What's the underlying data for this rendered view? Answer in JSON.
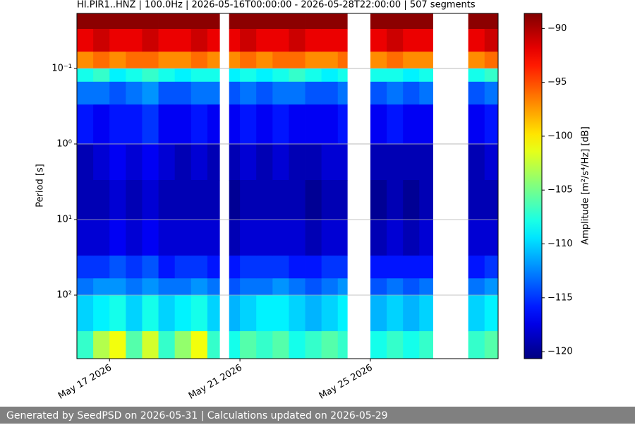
{
  "chart_data": {
    "type": "spectrogram",
    "title": "HI.PIR1..HNZ | 100.0Hz | 2026-05-16T00:00:00 - 2026-05-28T22:00:00 | 507 segments",
    "y_label": "Period [s]",
    "colorbar_label": "Amplitude [m²/s⁴/Hz] [dB]",
    "colormap": "jet",
    "y_log": true,
    "y_inverted": true,
    "grid": true,
    "x": [
      "2026-05-16 00:00",
      "2026-05-16 12:00",
      "2026-05-17 00:00",
      "2026-05-17 12:00",
      "2026-05-18 00:00",
      "2026-05-18 12:00",
      "2026-05-19 00:00",
      "2026-05-19 12:00",
      "2026-05-20 00:00",
      "2026-05-20 09:00",
      "2026-05-20 16:00",
      "2026-05-21 00:00",
      "2026-05-21 12:00",
      "2026-05-22 00:00",
      "2026-05-22 12:00",
      "2026-05-23 00:00",
      "2026-05-23 12:00",
      "2026-05-24 00:00",
      "2026-05-24 07:00",
      "2026-05-25 00:00",
      "2026-05-25 12:00",
      "2026-05-26 00:00",
      "2026-05-26 12:00",
      "2026-05-26 22:00",
      "2026-05-28 00:00",
      "2026-05-28 12:00",
      "2026-05-28 22:00"
    ],
    "periods": [
      0.0187,
      0.03,
      0.06,
      0.1,
      0.15,
      0.3,
      1,
      3,
      10,
      30,
      60,
      100,
      300,
      693
    ],
    "values": [
      [
        -89,
        -92,
        -97,
        -108,
        -113,
        -116,
        -119,
        -119,
        -118,
        -115,
        -113,
        -110,
        -107
      ],
      [
        -89,
        -91,
        -96,
        -107,
        -113,
        -117,
        -118,
        -119,
        -118,
        -115,
        -112,
        -109,
        -103
      ],
      [
        -89,
        -92,
        -97,
        -109,
        -114,
        -116,
        -117,
        -118,
        -117,
        -114,
        -112,
        -108,
        -101
      ],
      [
        -89,
        -92,
        -96,
        -108,
        -113,
        -116,
        -118,
        -119,
        -118,
        -115,
        -113,
        -110,
        -106
      ],
      [
        -89,
        -91,
        -96,
        -107,
        -112,
        -115,
        -117,
        -118,
        -117,
        -114,
        -112,
        -108,
        -102
      ],
      [
        -89,
        -92,
        -97,
        -108,
        -114,
        -117,
        -118,
        -119,
        -118,
        -116,
        -113,
        -110,
        -107
      ],
      [
        -89,
        -92,
        -97,
        -109,
        -114,
        -117,
        -119,
        -119,
        -118,
        -115,
        -113,
        -109,
        -104
      ],
      [
        -89,
        -91,
        -96,
        -108,
        -113,
        -116,
        -118,
        -119,
        -118,
        -115,
        -112,
        -108,
        -101
      ],
      [
        -89,
        -92,
        -97,
        -108,
        -113,
        -117,
        -119,
        -119,
        -118,
        -116,
        -113,
        -110,
        -107
      ],
      null,
      [
        -89,
        -92,
        -97,
        -109,
        -114,
        -117,
        -119,
        -120,
        -119,
        -116,
        -114,
        -111,
        -108
      ],
      [
        -89,
        -91,
        -96,
        -108,
        -113,
        -116,
        -118,
        -119,
        -118,
        -115,
        -113,
        -110,
        -106
      ],
      [
        -89,
        -92,
        -97,
        -109,
        -114,
        -117,
        -119,
        -119,
        -118,
        -115,
        -113,
        -109,
        -107
      ],
      [
        -89,
        -92,
        -96,
        -108,
        -113,
        -116,
        -118,
        -119,
        -118,
        -115,
        -112,
        -109,
        -106
      ],
      [
        -89,
        -91,
        -96,
        -107,
        -113,
        -117,
        -119,
        -119,
        -118,
        -116,
        -113,
        -110,
        -108
      ],
      [
        -89,
        -92,
        -97,
        -108,
        -114,
        -117,
        -119,
        -120,
        -119,
        -116,
        -114,
        -111,
        -107
      ],
      [
        -89,
        -92,
        -97,
        -109,
        -114,
        -117,
        -118,
        -119,
        -118,
        -115,
        -113,
        -110,
        -106
      ],
      [
        -89,
        -92,
        -96,
        -108,
        -113,
        -116,
        -118,
        -119,
        -118,
        -115,
        -112,
        -109,
        -107
      ],
      null,
      [
        -89,
        -92,
        -97,
        -108,
        -114,
        -117,
        -119,
        -120,
        -119,
        -116,
        -114,
        -111,
        -108
      ],
      [
        -89,
        -91,
        -96,
        -108,
        -113,
        -116,
        -119,
        -119,
        -118,
        -116,
        -113,
        -110,
        -107
      ],
      [
        -89,
        -92,
        -97,
        -109,
        -114,
        -117,
        -119,
        -120,
        -119,
        -116,
        -114,
        -111,
        -108
      ],
      [
        -89,
        -92,
        -97,
        -108,
        -113,
        -117,
        -119,
        -119,
        -118,
        -116,
        -113,
        -110,
        -107
      ],
      null,
      [
        -89,
        -92,
        -97,
        -108,
        -114,
        -117,
        -119,
        -119,
        -118,
        -116,
        -113,
        -110,
        -107
      ],
      [
        -89,
        -91,
        -96,
        -107,
        -113,
        -116,
        -118,
        -119,
        -118,
        -115,
        -112,
        -109,
        -106
      ]
    ],
    "xlim": [
      "2026-05-16 00:00",
      "2026-05-28 22:00"
    ],
    "xticks": [
      {
        "value": "2026-05-17 00:00",
        "label": "May 17 2026"
      },
      {
        "value": "2026-05-21 00:00",
        "label": "May 21 2026"
      },
      {
        "value": "2026-05-25 00:00",
        "label": "May 25 2026"
      }
    ],
    "ylim": [
      0.0187,
      693
    ],
    "yticks": [
      {
        "value": 0.1,
        "label": "10⁻¹"
      },
      {
        "value": 1,
        "label": "10⁰"
      },
      {
        "value": 10,
        "label": "10¹"
      },
      {
        "value": 100,
        "label": "10²"
      }
    ],
    "clim": [
      -120.65,
      -88.6
    ],
    "cticks": [
      {
        "value": -90,
        "label": "−90"
      },
      {
        "value": -95,
        "label": "−95"
      },
      {
        "value": -100,
        "label": "−100"
      },
      {
        "value": -105,
        "label": "−105"
      },
      {
        "value": -110,
        "label": "−110"
      },
      {
        "value": -115,
        "label": "−115"
      },
      {
        "value": -120,
        "label": "−120"
      }
    ]
  },
  "footer": {
    "text": "Generated by SeedPSD on 2026-05-31 | Calculations updated on 2026-05-29"
  }
}
